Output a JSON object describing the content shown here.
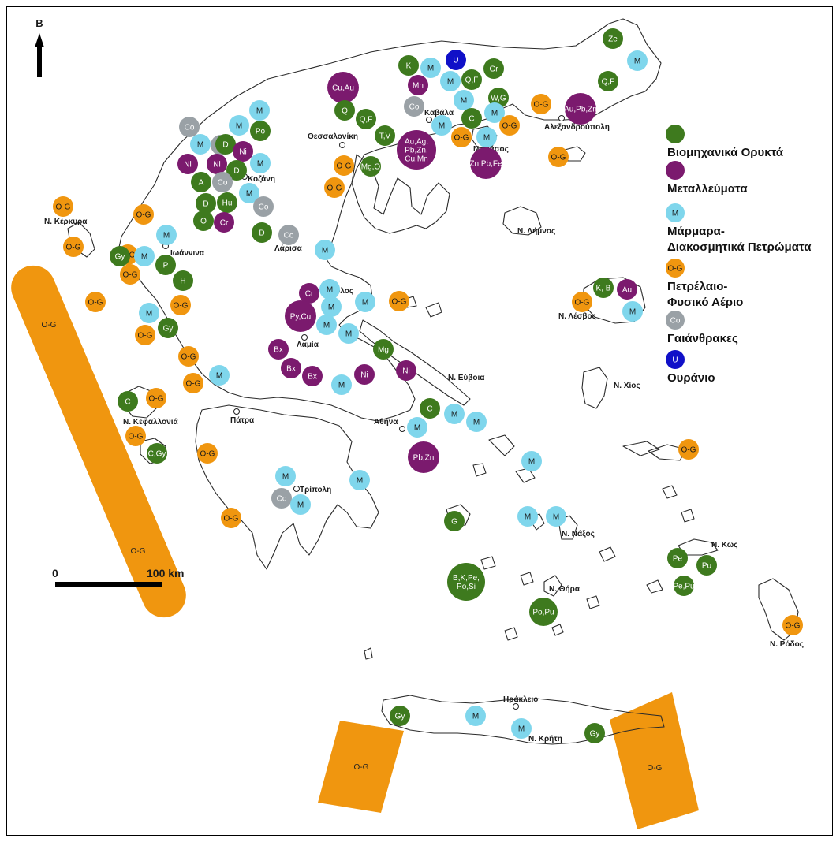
{
  "north_label": "B",
  "scale": {
    "zero_label": "0",
    "distance_label": "100 km"
  },
  "colors": {
    "industrial": "#3e7a1e",
    "metallic": "#7b1a6e",
    "marble": "#7fd6ec",
    "oil_gas": "#f0960f",
    "coal": "#9aa1a6",
    "uranium": "#1010c8"
  },
  "legend": [
    {
      "key": "industrial",
      "marker_label": "",
      "text": [
        "Βιομηχανικά Ορυκτά"
      ]
    },
    {
      "key": "metallic",
      "marker_label": "",
      "text": [
        "Μεταλλεύματα"
      ]
    },
    {
      "key": "marble",
      "marker_label": "M",
      "text": [
        "Μάρμαρα-",
        "Διακοσμητικά Πετρώματα"
      ]
    },
    {
      "key": "oil_gas",
      "marker_label": "O-G",
      "text": [
        "Πετρέλαιο-",
        "Φυσικό Αέριο"
      ]
    },
    {
      "key": "coal",
      "marker_label": "Co",
      "text": [
        "Γαιάνθρακες"
      ]
    },
    {
      "key": "uranium",
      "marker_label": "U",
      "text": [
        "Ουράνιο"
      ]
    }
  ],
  "places": [
    "Θεσσαλονίκη",
    "Καβάλα",
    "Αλεξανδρούπολη",
    "Ν. Θάσος",
    "Κοζάνη",
    "Ν. Κέρκυρα",
    "Ιωάννινα",
    "Λάρισα",
    "Ν. Λήμνος",
    "Βόλος",
    "Ν. Λέσβος",
    "Λαμία",
    "Ν. Εύβοια",
    "Ν. Χίος",
    "Ν. Κεφαλλονιά",
    "Πάτρα",
    "Αθήνα",
    "Τρίπολη",
    "Ν. Νάξος",
    "Ν. Κως",
    "Ν. Θήρα",
    "Ν. Ρόδος",
    "Ηράκλειο",
    "Ν. Κρήτη"
  ],
  "offshore_blocks": [
    "O-G",
    "O-G",
    "O-G",
    "O-G"
  ],
  "markers": [
    {
      "type": "industrial",
      "label": "Ze"
    },
    {
      "type": "marble",
      "label": "M"
    },
    {
      "type": "industrial",
      "label": "Q,F"
    },
    {
      "type": "uranium",
      "label": "U"
    },
    {
      "type": "industrial",
      "label": "K"
    },
    {
      "type": "marble",
      "label": "M"
    },
    {
      "type": "industrial",
      "label": "Gr"
    },
    {
      "type": "metallic",
      "label": "Mn"
    },
    {
      "type": "marble",
      "label": "M"
    },
    {
      "type": "industrial",
      "label": "Q,F"
    },
    {
      "type": "metallic",
      "label": "Cu,Au"
    },
    {
      "type": "marble",
      "label": "M"
    },
    {
      "type": "industrial",
      "label": "W,G"
    },
    {
      "type": "coal",
      "label": "Co"
    },
    {
      "type": "oil_gas",
      "label": "O-G"
    },
    {
      "type": "metallic",
      "label": "Au,Pb,Zn"
    },
    {
      "type": "marble",
      "label": "M"
    },
    {
      "type": "marble",
      "label": "M"
    },
    {
      "type": "industrial",
      "label": "C"
    },
    {
      "type": "industrial",
      "label": "Q"
    },
    {
      "type": "industrial",
      "label": "Q,F"
    },
    {
      "type": "marble",
      "label": "M"
    },
    {
      "type": "oil_gas",
      "label": "O-G"
    },
    {
      "type": "marble",
      "label": "M"
    },
    {
      "type": "industrial",
      "label": "T,V"
    },
    {
      "type": "metallic",
      "label": "Au,Ag,Pb,Zn,Cu,Mn"
    },
    {
      "type": "oil_gas",
      "label": "O-G"
    },
    {
      "type": "metallic",
      "label": "Zn,Pb,Fe"
    },
    {
      "type": "marble",
      "label": "M"
    },
    {
      "type": "oil_gas",
      "label": "O-G"
    },
    {
      "type": "coal",
      "label": "Co"
    },
    {
      "type": "marble",
      "label": "M"
    },
    {
      "type": "industrial",
      "label": "Po"
    },
    {
      "type": "coal",
      "label": "Co"
    },
    {
      "type": "industrial",
      "label": "D"
    },
    {
      "type": "metallic",
      "label": "Ni"
    },
    {
      "type": "metallic",
      "label": "Ni"
    },
    {
      "type": "metallic",
      "label": "Ni"
    },
    {
      "type": "industrial",
      "label": "D"
    },
    {
      "type": "marble",
      "label": "M"
    },
    {
      "type": "oil_gas",
      "label": "O-G"
    },
    {
      "type": "industrial",
      "label": "Mg,O"
    },
    {
      "type": "industrial",
      "label": "A"
    },
    {
      "type": "coal",
      "label": "Co"
    },
    {
      "type": "marble",
      "label": "M"
    },
    {
      "type": "oil_gas",
      "label": "O-G"
    },
    {
      "type": "industrial",
      "label": "D"
    },
    {
      "type": "industrial",
      "label": "Hu"
    },
    {
      "type": "coal",
      "label": "Co"
    },
    {
      "type": "industrial",
      "label": "O"
    },
    {
      "type": "metallic",
      "label": "Cr"
    },
    {
      "type": "oil_gas",
      "label": "O-G"
    },
    {
      "type": "oil_gas",
      "label": "O-G"
    },
    {
      "type": "industrial",
      "label": "D"
    },
    {
      "type": "coal",
      "label": "Co"
    },
    {
      "type": "oil_gas",
      "label": "O-G"
    },
    {
      "type": "marble",
      "label": "M"
    },
    {
      "type": "oil_gas",
      "label": "O-G"
    },
    {
      "type": "industrial",
      "label": "Gy"
    },
    {
      "type": "marble",
      "label": "M"
    },
    {
      "type": "industrial",
      "label": "P"
    },
    {
      "type": "marble",
      "label": "M"
    },
    {
      "type": "oil_gas",
      "label": "O-G"
    },
    {
      "type": "industrial",
      "label": "H"
    },
    {
      "type": "metallic",
      "label": "Cr"
    },
    {
      "type": "marble",
      "label": "M"
    },
    {
      "type": "marble",
      "label": "M"
    },
    {
      "type": "oil_gas",
      "label": "O-G"
    },
    {
      "type": "industrial",
      "label": "K, B"
    },
    {
      "type": "metallic",
      "label": "Au"
    },
    {
      "type": "oil_gas",
      "label": "O-G"
    },
    {
      "type": "oil_gas",
      "label": "O-G"
    },
    {
      "type": "oil_gas",
      "label": "O-G"
    },
    {
      "type": "metallic",
      "label": "Py,Cu"
    },
    {
      "type": "marble",
      "label": "M"
    },
    {
      "type": "marble",
      "label": "M"
    },
    {
      "type": "marble",
      "label": "M"
    },
    {
      "type": "industrial",
      "label": "Gy"
    },
    {
      "type": "oil_gas",
      "label": "O-G"
    },
    {
      "type": "marble",
      "label": "M"
    },
    {
      "type": "metallic",
      "label": "Bx"
    },
    {
      "type": "industrial",
      "label": "Mg"
    },
    {
      "type": "oil_gas",
      "label": "O-G"
    },
    {
      "type": "metallic",
      "label": "Bx"
    },
    {
      "type": "metallic",
      "label": "Bx"
    },
    {
      "type": "oil_gas",
      "label": "O-G"
    },
    {
      "type": "marble",
      "label": "M"
    },
    {
      "type": "marble",
      "label": "M"
    },
    {
      "type": "metallic",
      "label": "Ni"
    },
    {
      "type": "metallic",
      "label": "Ni"
    },
    {
      "type": "industrial",
      "label": "C"
    },
    {
      "type": "oil_gas",
      "label": "O-G"
    },
    {
      "type": "marble",
      "label": "M"
    },
    {
      "type": "industrial",
      "label": "C"
    },
    {
      "type": "marble",
      "label": "M"
    },
    {
      "type": "marble",
      "label": "M"
    },
    {
      "type": "marble",
      "label": "M"
    },
    {
      "type": "oil_gas",
      "label": "O-G"
    },
    {
      "type": "industrial",
      "label": "C,Gy"
    },
    {
      "type": "metallic",
      "label": "Pb,Zn"
    },
    {
      "type": "oil_gas",
      "label": "O-G"
    },
    {
      "type": "oil_gas",
      "label": "O-G"
    },
    {
      "type": "marble",
      "label": "M"
    },
    {
      "type": "marble",
      "label": "M"
    },
    {
      "type": "marble",
      "label": "M"
    },
    {
      "type": "coal",
      "label": "Co"
    },
    {
      "type": "marble",
      "label": "M"
    },
    {
      "type": "oil_gas",
      "label": "O-G"
    },
    {
      "type": "industrial",
      "label": "G"
    },
    {
      "type": "marble",
      "label": "M"
    },
    {
      "type": "marble",
      "label": "M"
    },
    {
      "type": "industrial",
      "label": "Pe"
    },
    {
      "type": "industrial",
      "label": "Pu"
    },
    {
      "type": "industrial",
      "label": "B,K,Pe,Po,Si"
    },
    {
      "type": "industrial",
      "label": "Pe,Pu"
    },
    {
      "type": "industrial",
      "label": "Po,Pu"
    },
    {
      "type": "oil_gas",
      "label": "O-G"
    },
    {
      "type": "industrial",
      "label": "Gy"
    },
    {
      "type": "marble",
      "label": "M"
    },
    {
      "type": "marble",
      "label": "M"
    },
    {
      "type": "industrial",
      "label": "Gy"
    }
  ]
}
